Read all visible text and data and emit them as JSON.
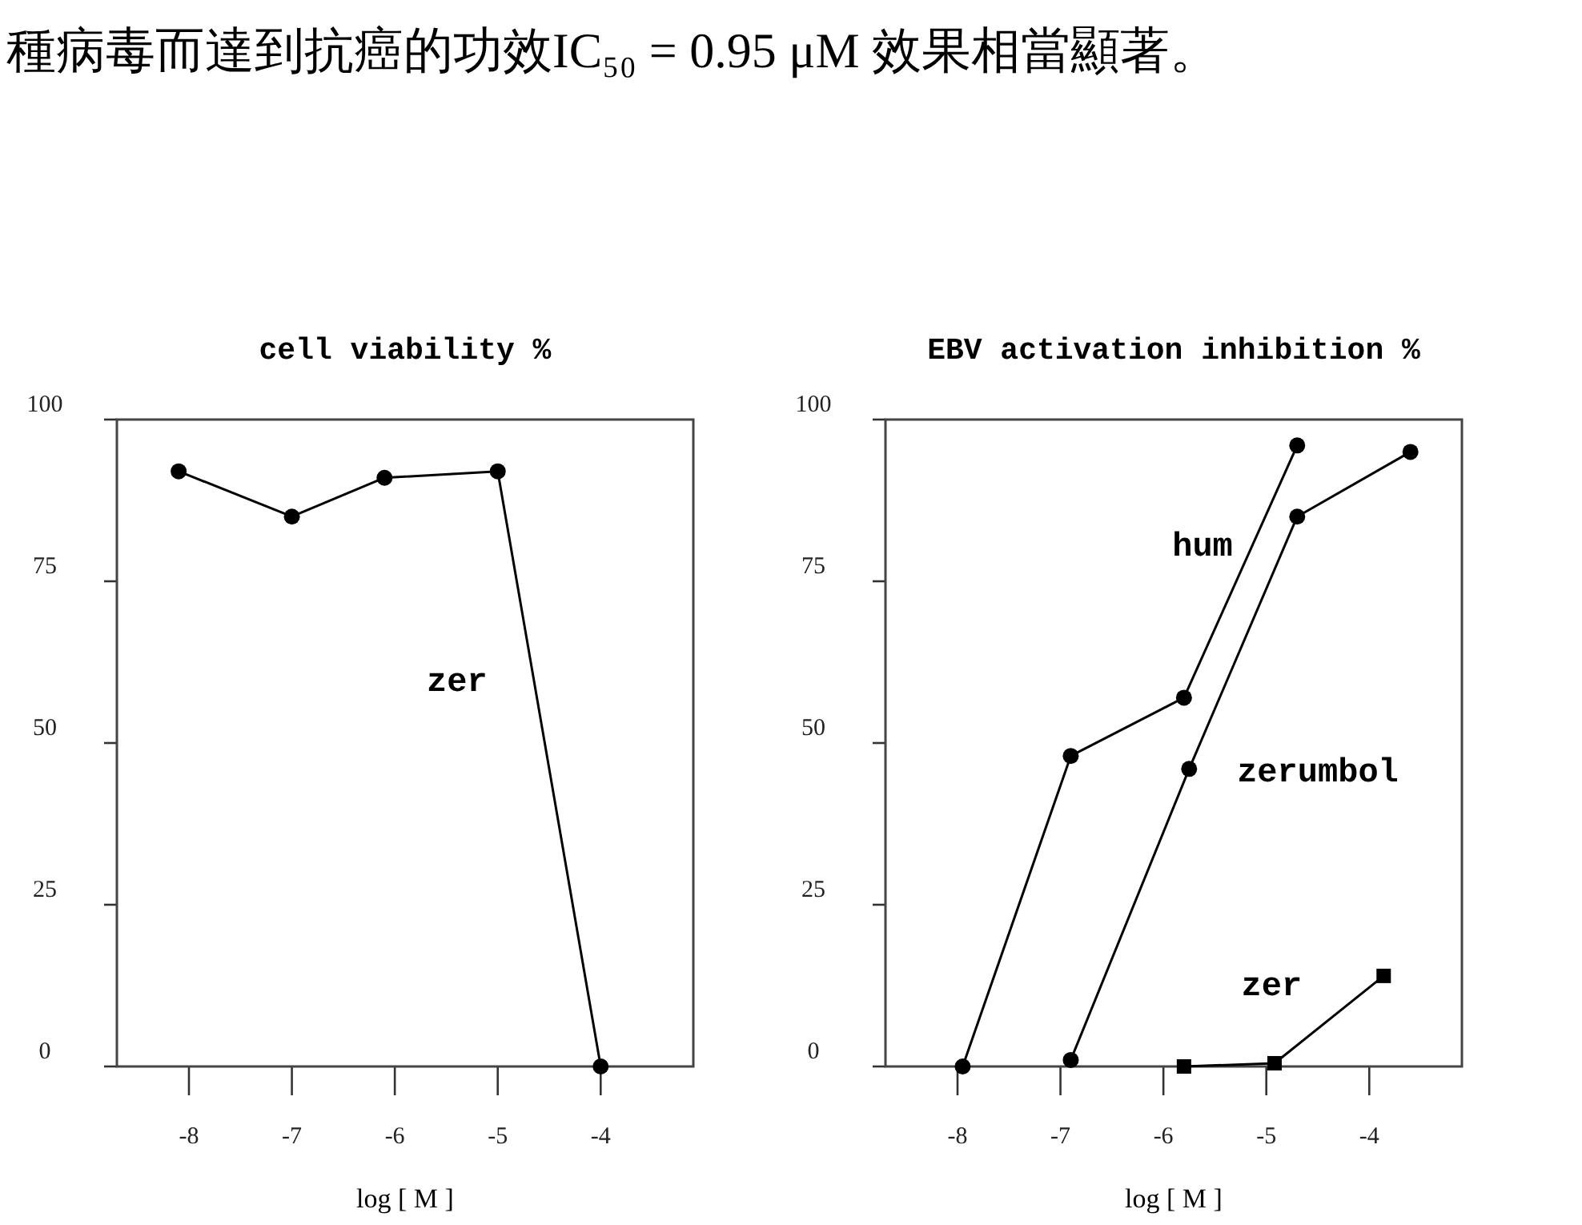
{
  "chart_data": [
    {
      "type": "line",
      "title": "cell viability %",
      "xlabel": "log [ M ]",
      "annotations": [
        "種病毒而達到抗癌的功效IC₅₀ = 0.95 μM 效果相當顯著。"
      ],
      "xlim": [
        -8.7,
        -3.1
      ],
      "xticks": [
        -8,
        -7,
        -6,
        -5,
        -4
      ],
      "ylim": [
        0,
        100
      ],
      "yticks": [
        0,
        25,
        50,
        75,
        100
      ],
      "marker": "circle",
      "line_style": "solid",
      "series": [
        {
          "name": "zer",
          "color": "#000000",
          "x": [
            -8.1,
            -7,
            -6.1,
            -5,
            -4
          ],
          "values": [
            92,
            85,
            91,
            92,
            0
          ]
        }
      ]
    },
    {
      "type": "line",
      "title": "EBV activation inhibition %",
      "xlabel": "log [ M ]",
      "xlim": [
        -8.7,
        -3.1
      ],
      "xticks": [
        -8,
        -7,
        -6,
        -5,
        -4
      ],
      "ylim": [
        0,
        100
      ],
      "yticks": [
        0,
        25,
        50,
        75,
        100
      ],
      "line_style": "solid",
      "series": [
        {
          "name": "hum",
          "color": "#000000",
          "marker": "circle",
          "x": [
            -7.95,
            -6.9,
            -5.8,
            -4.7
          ],
          "values": [
            0,
            48,
            57,
            96
          ]
        },
        {
          "name": "zerumbol",
          "color": "#000000",
          "marker": "circle",
          "x": [
            -6.9,
            -5.75,
            -4.7,
            -3.6
          ],
          "values": [
            1,
            46,
            85,
            95
          ]
        },
        {
          "name": "zer",
          "color": "#000000",
          "marker": "square",
          "x": [
            -5.8,
            -4.92,
            -3.86
          ],
          "values": [
            0,
            0.5,
            14
          ]
        }
      ]
    }
  ]
}
